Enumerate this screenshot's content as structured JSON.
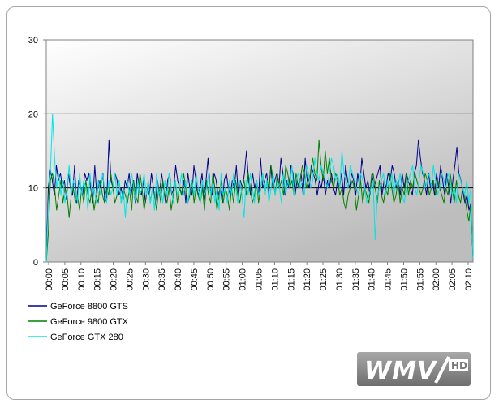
{
  "chart_data": {
    "type": "line",
    "ylim": [
      0,
      30
    ],
    "y_ticks": [
      "0",
      "10",
      "20",
      "30"
    ],
    "x_tick_labels": [
      "00:00",
      "00:05",
      "00:10",
      "00:15",
      "00:20",
      "00:25",
      "00:30",
      "00:35",
      "00:40",
      "00:45",
      "00:50",
      "00:55",
      "01:00",
      "01:05",
      "01:10",
      "01:15",
      "01:20",
      "01:25",
      "01:30",
      "01:35",
      "01:40",
      "01:45",
      "01:50",
      "01:55",
      "02:00",
      "02:05",
      "02:10"
    ],
    "grid": "horizontal",
    "legend_position": "bottom-left",
    "series": [
      {
        "name": "GeForce 8800 GTS",
        "color": "#00008b",
        "values": [
          0,
          10,
          12.5,
          11,
          9,
          13,
          11,
          12,
          10,
          11,
          8.5,
          12,
          10,
          9,
          13,
          8,
          11,
          10,
          9,
          12,
          11,
          12,
          10,
          8,
          13,
          9,
          11,
          10,
          12,
          8,
          9,
          16.5,
          11,
          10,
          12,
          11,
          9,
          10,
          8.5,
          11,
          10,
          12,
          9,
          11,
          8,
          12,
          10,
          9,
          11,
          8,
          10,
          9,
          12,
          10,
          8,
          11,
          9,
          12,
          10,
          8,
          11,
          12,
          9,
          10,
          13,
          11,
          10,
          9,
          11,
          8,
          12,
          10,
          9,
          13,
          11,
          9,
          10,
          12,
          8,
          11,
          14,
          10,
          9,
          12,
          11,
          9,
          10,
          8,
          11,
          12,
          10,
          9,
          11,
          10,
          13,
          9,
          11,
          10,
          12,
          15,
          11,
          9,
          12,
          10,
          11,
          9,
          14,
          10,
          11,
          12,
          9,
          13,
          10,
          11,
          12,
          10,
          14,
          12,
          9,
          11,
          10,
          13,
          12,
          9,
          11,
          10,
          12,
          9,
          14,
          11,
          10,
          13,
          12,
          11,
          9,
          11,
          10,
          12,
          9,
          11,
          10,
          12,
          10,
          9,
          11,
          10,
          12,
          9,
          13,
          11,
          10,
          12,
          11,
          9,
          12,
          10,
          14,
          12,
          10,
          11,
          9,
          12,
          10,
          11,
          12,
          13,
          9,
          11,
          10,
          12,
          11,
          13,
          12,
          10,
          11,
          9,
          12,
          10,
          12,
          11,
          10,
          9,
          12,
          13,
          16.5,
          14,
          12,
          11,
          9,
          12,
          10,
          11,
          9,
          12,
          10,
          13,
          11,
          9,
          12,
          10,
          8,
          11,
          13,
          15.5,
          12,
          11,
          9.5,
          8,
          9,
          7,
          8,
          0.5
        ]
      },
      {
        "name": "GeForce 9800 GTX",
        "color": "#008000",
        "values": [
          0,
          4,
          11,
          12,
          10,
          7,
          9,
          11,
          8,
          10,
          9,
          6,
          9,
          10,
          8,
          9,
          7,
          10,
          8,
          11,
          9,
          8,
          10,
          7,
          9,
          8,
          11,
          9,
          8,
          10,
          9,
          12,
          10,
          8,
          9,
          11,
          8,
          10,
          9,
          8,
          10,
          7,
          11,
          9,
          8,
          12,
          10,
          7,
          9,
          11,
          8,
          10,
          9,
          7,
          10,
          8,
          11,
          9,
          8,
          10,
          7,
          9,
          11,
          8,
          10,
          9,
          12,
          10,
          8,
          9,
          11,
          8,
          10,
          9,
          8,
          10,
          7,
          11,
          9,
          8,
          12,
          10,
          7,
          9,
          11,
          8,
          10,
          9,
          7,
          10,
          8,
          11,
          9,
          8,
          10,
          11,
          9,
          12,
          10,
          8,
          9,
          11,
          8,
          10,
          12,
          9,
          11,
          10,
          13,
          11,
          9,
          12,
          10,
          11,
          9,
          13,
          12,
          10,
          11,
          9,
          12,
          10,
          11,
          13,
          12,
          10,
          11,
          12,
          14,
          12,
          11,
          16.5,
          13,
          11,
          15,
          12,
          14,
          11,
          10,
          12,
          11,
          9,
          10,
          8,
          7,
          9,
          10,
          11,
          10,
          7,
          9,
          11,
          8,
          10,
          9,
          8,
          11,
          12,
          10,
          8,
          11,
          9,
          8,
          10,
          9,
          12,
          10,
          8,
          9,
          11,
          8,
          10,
          9,
          12,
          9,
          11,
          10,
          12,
          11,
          10,
          9,
          10,
          12,
          11,
          9,
          10,
          11,
          9,
          11,
          10,
          9,
          8,
          10,
          9,
          12,
          10,
          8,
          11,
          9,
          8,
          10,
          9,
          7,
          5.5,
          8,
          0.5
        ]
      },
      {
        "name": "GeForce GTX 280",
        "color": "#00e5e5",
        "values": [
          0,
          8,
          12,
          20,
          14,
          10,
          12,
          9,
          11,
          8,
          10,
          13,
          9,
          11,
          10,
          8,
          12,
          9,
          11,
          10,
          7,
          12,
          9,
          10,
          8,
          11,
          9,
          12,
          10,
          8,
          11,
          9,
          10,
          12,
          9,
          11,
          8,
          10,
          6,
          11,
          9,
          12,
          10,
          8,
          11,
          9,
          10,
          12,
          9,
          11,
          8,
          10,
          7,
          12,
          9,
          10,
          8,
          11,
          9,
          12,
          10,
          8,
          11,
          9,
          10,
          12,
          9,
          11,
          8,
          10,
          11,
          9,
          12,
          10,
          8,
          11,
          9,
          10,
          12,
          9,
          11,
          8,
          10,
          7,
          12,
          9,
          10,
          8,
          11,
          9,
          12,
          10,
          8,
          11,
          9,
          6,
          11,
          9,
          12,
          10,
          8,
          11,
          9,
          10,
          12,
          9,
          11,
          8,
          10,
          12,
          9,
          11,
          10,
          8,
          12,
          9,
          11,
          10,
          13,
          9,
          11,
          12,
          10,
          11,
          9,
          13,
          12,
          10,
          11,
          14,
          12,
          11,
          13,
          12,
          11,
          10,
          12,
          14,
          13,
          11,
          12,
          10,
          15,
          12,
          11,
          10,
          13,
          12,
          11,
          10,
          9,
          12,
          11,
          10,
          8,
          9,
          10,
          11,
          3,
          9,
          10,
          11,
          12,
          9,
          11,
          10,
          12,
          9,
          11,
          10,
          12,
          9,
          8,
          10,
          11,
          12,
          13,
          10,
          9,
          11,
          13,
          12,
          10,
          11,
          12,
          10,
          13,
          11,
          9,
          10,
          12,
          11,
          10,
          12,
          11,
          9,
          10,
          8,
          12,
          11,
          10,
          9,
          11,
          8,
          10,
          0.5
        ]
      }
    ]
  },
  "logo": {
    "text": "WMV",
    "suffix": "HD",
    "bg": "#8a8a8a"
  }
}
